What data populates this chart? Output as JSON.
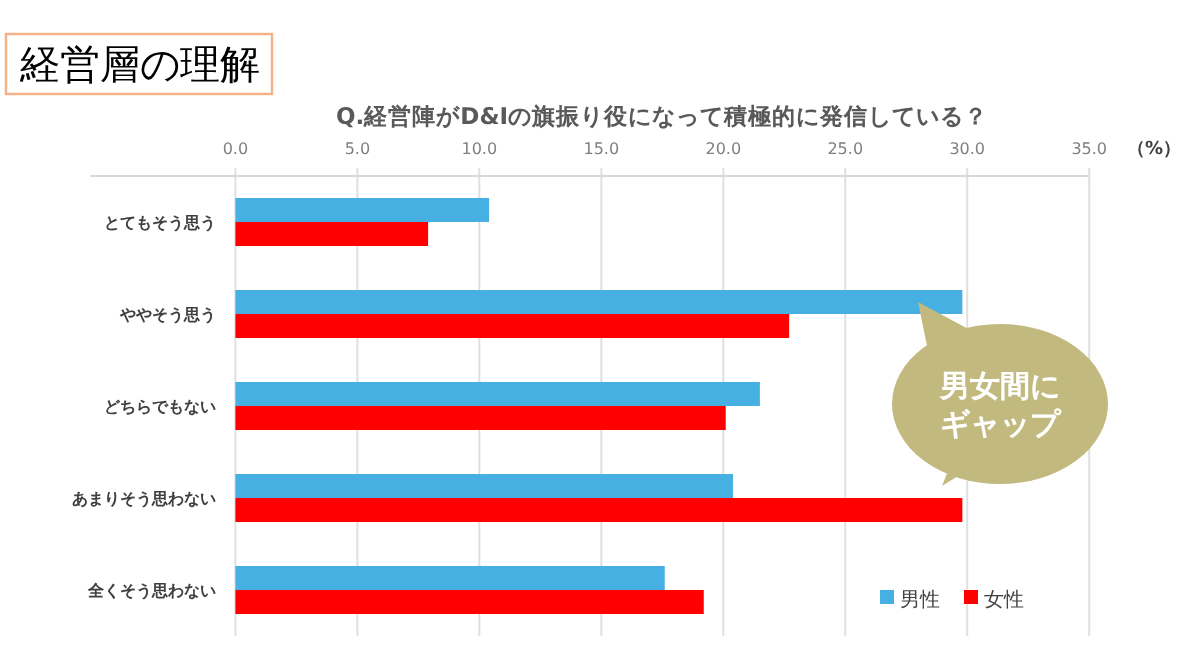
{
  "chart_data": {
    "type": "bar",
    "orientation": "horizontal",
    "title": "経営層の理解",
    "subtitle": "Q.経営陣がD&Iの旗振り役になって積極的に発信している？",
    "xlabel": "（%）",
    "categories": [
      "とてもそう思う",
      "ややそう思う",
      "どちらでもない",
      "あまりそう思わない",
      "全くそう思わない"
    ],
    "series": [
      {
        "name": "男性",
        "color": "#45b0e1",
        "values": [
          10.4,
          29.8,
          21.5,
          20.4,
          17.6
        ]
      },
      {
        "name": "女性",
        "color": "#ff0000",
        "values": [
          7.9,
          22.7,
          20.1,
          29.8,
          19.2
        ]
      }
    ],
    "xlim": [
      0,
      35
    ],
    "xticks": [
      {
        "value": 0,
        "label": "0.0"
      },
      {
        "value": 5,
        "label": "5.0"
      },
      {
        "value": 10,
        "label": "10.0"
      },
      {
        "value": 15,
        "label": "15.0"
      },
      {
        "value": 20,
        "label": "20.0"
      },
      {
        "value": 25,
        "label": "25.0"
      },
      {
        "value": 30,
        "label": "30.0"
      },
      {
        "value": 35,
        "label": "35.0"
      }
    ],
    "grid": "x",
    "legend": "bottom right",
    "annotations": [
      "男女間にギャップ"
    ]
  }
}
